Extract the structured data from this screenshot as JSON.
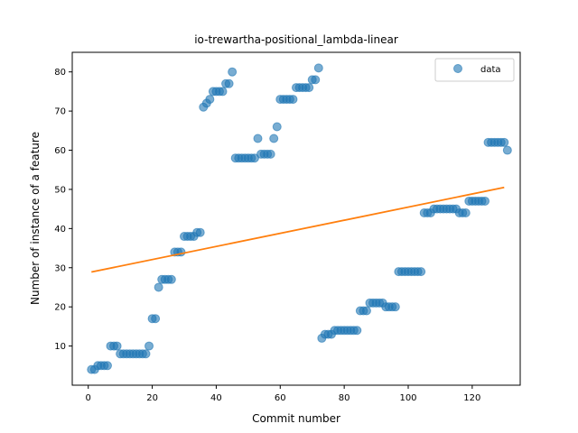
{
  "chart_data": {
    "type": "scatter",
    "title": "io-trewartha-positional_lambda-linear",
    "xlabel": "Commit number",
    "ylabel": "Number of instance of a feature",
    "xlim": [
      -5,
      135
    ],
    "ylim": [
      0,
      85
    ],
    "xticks": [
      0,
      20,
      40,
      60,
      80,
      100,
      120
    ],
    "yticks": [
      10,
      20,
      30,
      40,
      50,
      60,
      70,
      80
    ],
    "grid": false,
    "legend_placement": "top-right",
    "series": [
      {
        "name": "data",
        "kind": "scatter",
        "color": "#1f77b4",
        "points": [
          [
            1,
            4
          ],
          [
            2,
            4
          ],
          [
            3,
            5
          ],
          [
            4,
            5
          ],
          [
            5,
            5
          ],
          [
            6,
            5
          ],
          [
            7,
            10
          ],
          [
            8,
            10
          ],
          [
            9,
            10
          ],
          [
            10,
            8
          ],
          [
            11,
            8
          ],
          [
            12,
            8
          ],
          [
            13,
            8
          ],
          [
            14,
            8
          ],
          [
            15,
            8
          ],
          [
            16,
            8
          ],
          [
            17,
            8
          ],
          [
            18,
            8
          ],
          [
            19,
            10
          ],
          [
            20,
            17
          ],
          [
            21,
            17
          ],
          [
            22,
            25
          ],
          [
            23,
            27
          ],
          [
            24,
            27
          ],
          [
            25,
            27
          ],
          [
            26,
            27
          ],
          [
            27,
            34
          ],
          [
            28,
            34
          ],
          [
            29,
            34
          ],
          [
            30,
            38
          ],
          [
            31,
            38
          ],
          [
            32,
            38
          ],
          [
            33,
            38
          ],
          [
            34,
            39
          ],
          [
            35,
            39
          ],
          [
            36,
            71
          ],
          [
            37,
            72
          ],
          [
            38,
            73
          ],
          [
            39,
            75
          ],
          [
            40,
            75
          ],
          [
            41,
            75
          ],
          [
            42,
            75
          ],
          [
            43,
            77
          ],
          [
            44,
            77
          ],
          [
            45,
            80
          ],
          [
            46,
            58
          ],
          [
            47,
            58
          ],
          [
            48,
            58
          ],
          [
            49,
            58
          ],
          [
            50,
            58
          ],
          [
            51,
            58
          ],
          [
            52,
            58
          ],
          [
            53,
            63
          ],
          [
            54,
            59
          ],
          [
            55,
            59
          ],
          [
            56,
            59
          ],
          [
            57,
            59
          ],
          [
            58,
            63
          ],
          [
            59,
            66
          ],
          [
            60,
            73
          ],
          [
            61,
            73
          ],
          [
            62,
            73
          ],
          [
            63,
            73
          ],
          [
            64,
            73
          ],
          [
            65,
            76
          ],
          [
            66,
            76
          ],
          [
            67,
            76
          ],
          [
            68,
            76
          ],
          [
            69,
            76
          ],
          [
            70,
            78
          ],
          [
            71,
            78
          ],
          [
            72,
            81
          ],
          [
            73,
            12
          ],
          [
            74,
            13
          ],
          [
            75,
            13
          ],
          [
            76,
            13
          ],
          [
            77,
            14
          ],
          [
            78,
            14
          ],
          [
            79,
            14
          ],
          [
            80,
            14
          ],
          [
            81,
            14
          ],
          [
            82,
            14
          ],
          [
            83,
            14
          ],
          [
            84,
            14
          ],
          [
            85,
            19
          ],
          [
            86,
            19
          ],
          [
            87,
            19
          ],
          [
            88,
            21
          ],
          [
            89,
            21
          ],
          [
            90,
            21
          ],
          [
            91,
            21
          ],
          [
            92,
            21
          ],
          [
            93,
            20
          ],
          [
            94,
            20
          ],
          [
            95,
            20
          ],
          [
            96,
            20
          ],
          [
            97,
            29
          ],
          [
            98,
            29
          ],
          [
            99,
            29
          ],
          [
            100,
            29
          ],
          [
            101,
            29
          ],
          [
            102,
            29
          ],
          [
            103,
            29
          ],
          [
            104,
            29
          ],
          [
            105,
            44
          ],
          [
            106,
            44
          ],
          [
            107,
            44
          ],
          [
            108,
            45
          ],
          [
            109,
            45
          ],
          [
            110,
            45
          ],
          [
            111,
            45
          ],
          [
            112,
            45
          ],
          [
            113,
            45
          ],
          [
            114,
            45
          ],
          [
            115,
            45
          ],
          [
            116,
            44
          ],
          [
            117,
            44
          ],
          [
            118,
            44
          ],
          [
            119,
            47
          ],
          [
            120,
            47
          ],
          [
            121,
            47
          ],
          [
            122,
            47
          ],
          [
            123,
            47
          ],
          [
            124,
            47
          ],
          [
            125,
            62
          ],
          [
            126,
            62
          ],
          [
            127,
            62
          ],
          [
            128,
            62
          ],
          [
            129,
            62
          ],
          [
            130,
            62
          ],
          [
            131,
            60
          ]
        ]
      },
      {
        "kind": "line",
        "color": "#ff7f0e",
        "x": [
          1,
          130
        ],
        "y": [
          28.9,
          50.5
        ]
      }
    ]
  }
}
